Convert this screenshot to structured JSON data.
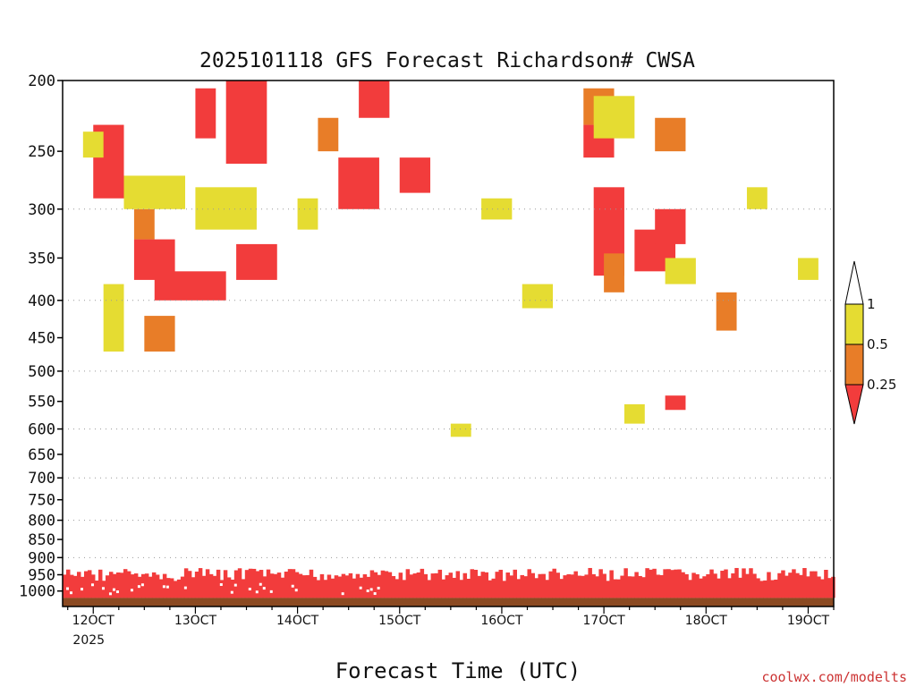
{
  "chart_data": {
    "type": "heatmap",
    "title": "2025101118 GFS Forecast Richardson# CWSA",
    "xlabel": "Forecast Time (UTC)",
    "ylabel": "",
    "credit": "coolwx.com/modelts",
    "x_range": [
      11.7,
      19.25
    ],
    "x_unit": "days (of October 2025)",
    "x_ticks": [
      {
        "value": 12,
        "label": "12OCT",
        "sublabel": "2025"
      },
      {
        "value": 13,
        "label": "13OCT"
      },
      {
        "value": 14,
        "label": "14OCT"
      },
      {
        "value": 15,
        "label": "15OCT"
      },
      {
        "value": 16,
        "label": "16OCT"
      },
      {
        "value": 17,
        "label": "17OCT"
      },
      {
        "value": 18,
        "label": "18OCT"
      },
      {
        "value": 19,
        "label": "19OCT"
      }
    ],
    "y_axis": "pressure (hPa), log scale, inverted",
    "y_range": [
      200,
      1050
    ],
    "y_ticks": [
      200,
      250,
      300,
      350,
      400,
      450,
      500,
      550,
      600,
      650,
      700,
      750,
      800,
      850,
      900,
      950,
      1000
    ],
    "gridlines": [
      300,
      400,
      500,
      600,
      700,
      800,
      900
    ],
    "colorbar": {
      "levels": [
        0,
        0.25,
        0.5,
        1
      ],
      "labels": [
        "0.25",
        "0.5",
        "1"
      ],
      "colors": {
        "lt_0_25": "#f23c3c",
        "0_25_to_0_5": "#e87d28",
        "0_5_to_1": "#e5dc32",
        "gt_1": "#ffffff",
        "ground": "#8b4a22"
      }
    },
    "series": [
      {
        "name": "Ri < 0.25",
        "color": "#f23c3c",
        "patches": [
          {
            "x": [
              12.0,
              12.3
            ],
            "p": [
              230,
              290
            ]
          },
          {
            "x": [
              13.0,
              13.2
            ],
            "p": [
              205,
              240
            ]
          },
          {
            "x": [
              13.3,
              13.7
            ],
            "p": [
              200,
              260
            ]
          },
          {
            "x": [
              14.6,
              14.9
            ],
            "p": [
              200,
              225
            ]
          },
          {
            "x": [
              14.4,
              14.8
            ],
            "p": [
              255,
              300
            ]
          },
          {
            "x": [
              15.0,
              15.3
            ],
            "p": [
              255,
              285
            ]
          },
          {
            "x": [
              12.4,
              12.8
            ],
            "p": [
              330,
              375
            ]
          },
          {
            "x": [
              12.6,
              13.3
            ],
            "p": [
              365,
              400
            ]
          },
          {
            "x": [
              13.4,
              13.8
            ],
            "p": [
              335,
              375
            ]
          },
          {
            "x": [
              16.8,
              17.1
            ],
            "p": [
              230,
              255
            ]
          },
          {
            "x": [
              16.9,
              17.2
            ],
            "p": [
              280,
              370
            ]
          },
          {
            "x": [
              17.3,
              17.7
            ],
            "p": [
              320,
              365
            ]
          },
          {
            "x": [
              17.5,
              17.8
            ],
            "p": [
              300,
              335
            ]
          },
          {
            "x": [
              17.6,
              17.8
            ],
            "p": [
              540,
              565
            ]
          }
        ]
      },
      {
        "name": "0.25 <= Ri < 0.5",
        "color": "#e87d28",
        "patches": [
          {
            "x": [
              14.2,
              14.4
            ],
            "p": [
              225,
              250
            ]
          },
          {
            "x": [
              16.8,
              17.1
            ],
            "p": [
              205,
              230
            ]
          },
          {
            "x": [
              17.5,
              17.8
            ],
            "p": [
              225,
              250
            ]
          },
          {
            "x": [
              12.4,
              12.6
            ],
            "p": [
              300,
              330
            ]
          },
          {
            "x": [
              12.5,
              12.8
            ],
            "p": [
              420,
              470
            ]
          },
          {
            "x": [
              17.0,
              17.2
            ],
            "p": [
              345,
              390
            ]
          },
          {
            "x": [
              18.1,
              18.3
            ],
            "p": [
              390,
              440
            ]
          }
        ]
      },
      {
        "name": "0.5 <= Ri < 1",
        "color": "#e5dc32",
        "patches": [
          {
            "x": [
              11.9,
              12.1
            ],
            "p": [
              235,
              255
            ]
          },
          {
            "x": [
              12.3,
              12.9
            ],
            "p": [
              270,
              300
            ]
          },
          {
            "x": [
              12.1,
              12.3
            ],
            "p": [
              380,
              470
            ]
          },
          {
            "x": [
              13.0,
              13.6
            ],
            "p": [
              280,
              320
            ]
          },
          {
            "x": [
              14.0,
              14.2
            ],
            "p": [
              290,
              320
            ]
          },
          {
            "x": [
              15.8,
              16.1
            ],
            "p": [
              290,
              310
            ]
          },
          {
            "x": [
              16.2,
              16.5
            ],
            "p": [
              380,
              410
            ]
          },
          {
            "x": [
              16.9,
              17.3
            ],
            "p": [
              210,
              240
            ]
          },
          {
            "x": [
              17.6,
              17.9
            ],
            "p": [
              350,
              380
            ]
          },
          {
            "x": [
              18.4,
              18.6
            ],
            "p": [
              280,
              300
            ]
          },
          {
            "x": [
              18.9,
              19.1
            ],
            "p": [
              350,
              375
            ]
          },
          {
            "x": [
              17.2,
              17.4
            ],
            "p": [
              555,
              590
            ]
          },
          {
            "x": [
              15.5,
              15.7
            ],
            "p": [
              590,
              615
            ]
          }
        ]
      }
    ]
  }
}
